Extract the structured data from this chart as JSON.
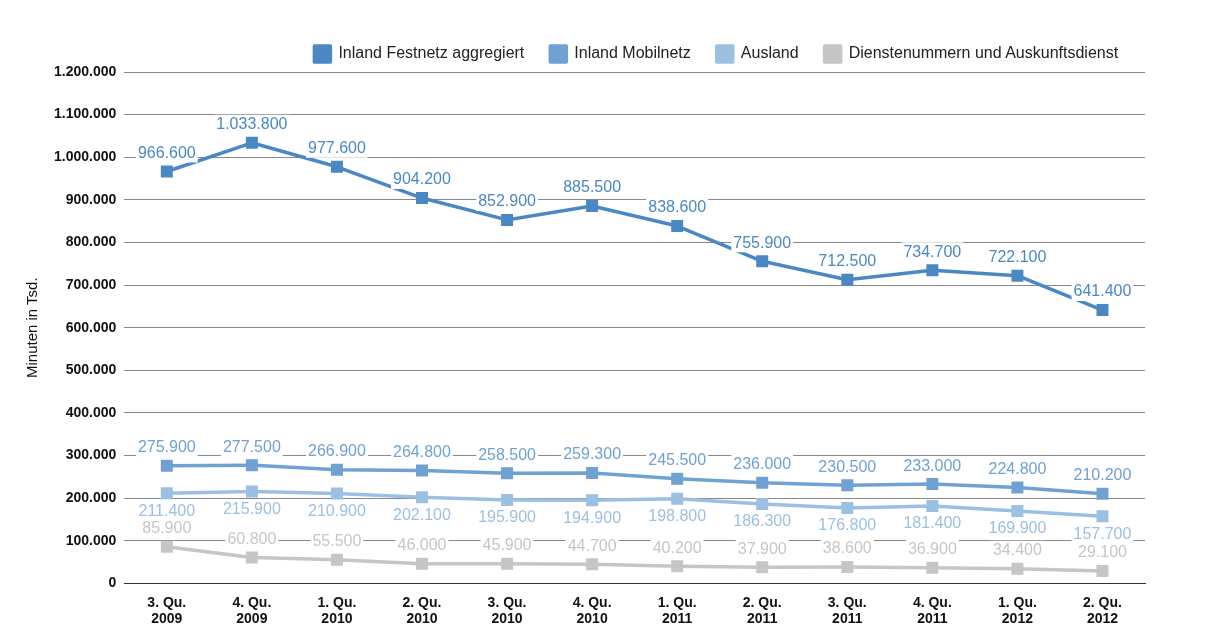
{
  "chart_data": {
    "type": "line",
    "ylabel": "Minuten in Tsd.",
    "categories": [
      "3. Qu. 2009",
      "4. Qu. 2009",
      "1. Qu. 2010",
      "2. Qu. 2010",
      "3. Qu. 2010",
      "4. Qu. 2010",
      "1. Qu. 2011",
      "2. Qu. 2011",
      "3. Qu. 2011",
      "4. Qu. 2011",
      "1. Qu. 2012",
      "2. Qu. 2012"
    ],
    "series": [
      {
        "name": "Inland Festnetz aggregiert",
        "color": "#4a88c4",
        "values": [
          966600,
          1033800,
          977600,
          904200,
          852900,
          885500,
          838600,
          755900,
          712500,
          734700,
          722100,
          641400
        ],
        "value_labels": [
          "966.600",
          "1.033.800",
          "977.600",
          "904.200",
          "852.900",
          "885.500",
          "838.600",
          "755.900",
          "712.500",
          "734.700",
          "722.100",
          "641.400"
        ]
      },
      {
        "name": "Inland Mobilnetz",
        "color": "#6fa1d2",
        "values": [
          275900,
          277500,
          266900,
          264800,
          258500,
          259300,
          245500,
          236000,
          230500,
          233000,
          224800,
          210200
        ],
        "value_labels": [
          "275.900",
          "277.500",
          "266.900",
          "264.800",
          "258.500",
          "259.300",
          "245.500",
          "236.000",
          "230.500",
          "233.000",
          "224.800",
          "210.200"
        ]
      },
      {
        "name": "Ausland",
        "color": "#9cc0e2",
        "values": [
          211400,
          215900,
          210900,
          202100,
          195900,
          194900,
          198800,
          186300,
          176800,
          181400,
          169900,
          157700
        ],
        "value_labels": [
          "211.400",
          "215.900",
          "210.900",
          "202.100",
          "195.900",
          "194.900",
          "198.800",
          "186.300",
          "176.800",
          "181.400",
          "169.900",
          "157.700"
        ]
      },
      {
        "name": "Dienstenummern und Auskunftsdienst",
        "color": "#c6c6c6",
        "values": [
          85900,
          60800,
          55500,
          46000,
          45900,
          44700,
          40200,
          37900,
          38600,
          36900,
          34400,
          29100
        ],
        "value_labels": [
          "85.900",
          "60.800",
          "55.500",
          "46.000",
          "45.900",
          "44.700",
          "40.200",
          "37.900",
          "38.600",
          "36.900",
          "34.400",
          "29.100"
        ]
      }
    ],
    "ylim": [
      0,
      1200000
    ],
    "yticks": [
      0,
      {
        "value": 100000,
        "label": "100.000"
      },
      {
        "value": 200000,
        "label": "200.000"
      },
      {
        "value": 300000,
        "label": "300.000"
      },
      {
        "value": 400000,
        "label": "400.000"
      },
      {
        "value": 500000,
        "label": "500.000"
      },
      {
        "value": 600000,
        "label": "600.000"
      },
      {
        "value": 700000,
        "label": "700.000"
      },
      {
        "value": 800000,
        "label": "800.000"
      },
      {
        "value": 900000,
        "label": "900.000"
      },
      {
        "value": 1000000,
        "label": "1.000.000"
      },
      {
        "value": 1100000,
        "label": "1.100.000"
      },
      {
        "value": 1200000,
        "label": "1.200.000"
      }
    ],
    "grid": "y",
    "legend": "top right",
    "marker": "square",
    "line_style": "solid"
  }
}
